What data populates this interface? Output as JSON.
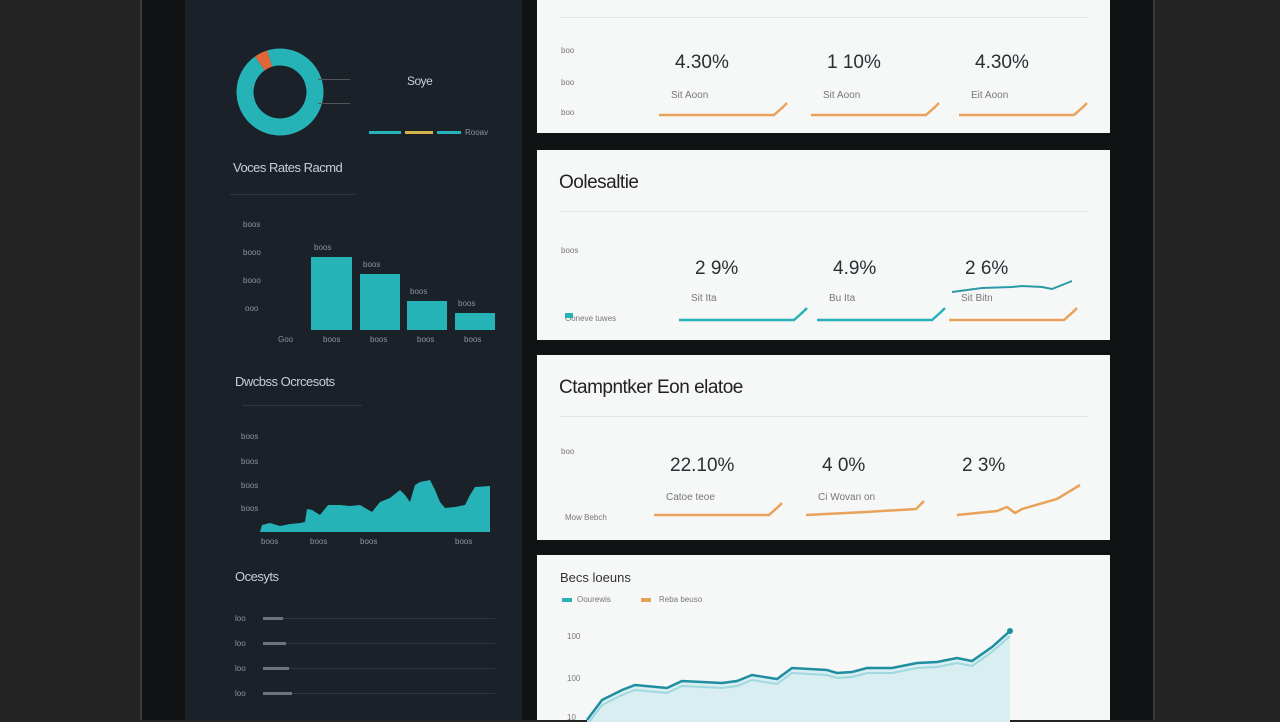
{
  "colors": {
    "teal": "#25b3b8",
    "orange": "#e9a25a",
    "panel": "#1b2129",
    "card": "#f6f7f7"
  },
  "left": {
    "donut": {
      "label": "Soye",
      "legend": "Rooav",
      "slices": [
        {
          "value": 95,
          "color": "#25b3b8"
        },
        {
          "value": 5,
          "color": "#e0673a"
        }
      ]
    },
    "bar_section": {
      "title": "Voces Rates Racmd",
      "y_ticks": [
        "boos",
        "booo",
        "booo",
        "ooo"
      ],
      "x_labels": [
        "Goo",
        "boos",
        "boos",
        "boos",
        "boos"
      ],
      "bar_labels": [
        "boos",
        "boos",
        "boos",
        "boos"
      ],
      "values": [
        1.0,
        0.77,
        0.4,
        0.23
      ]
    },
    "area_section": {
      "title": "Dwcbss Ocrcesots",
      "y_ticks": [
        "boos",
        "boos",
        "boos",
        "boos"
      ],
      "x_labels": [
        "boos",
        "boos",
        "boos",
        "boos"
      ]
    },
    "list_section": {
      "title": "Ocesyts",
      "rows": [
        "loo",
        "loo",
        "loo",
        "loo"
      ]
    }
  },
  "cards": [
    {
      "title": "",
      "side_labels": [
        "boo",
        "boo",
        "boo"
      ],
      "metrics": [
        {
          "value": "4.30%",
          "label": "Sit Aoon",
          "color": "#e9a25a"
        },
        {
          "value": "1 10%",
          "label": "Sit Aoon",
          "color": "#e9a25a"
        },
        {
          "value": "4.30%",
          "label": "Eit Aoon",
          "color": "#e9a25a"
        }
      ]
    },
    {
      "title": "Oolesaltie",
      "side_labels": [
        "boos",
        "Ooneve tuwes"
      ],
      "metrics": [
        {
          "value": "2 9%",
          "label": "Sit Ita",
          "color": "#25b3b8"
        },
        {
          "value": "4.9%",
          "label": "Bu Ita",
          "color": "#25b3b8"
        },
        {
          "value": "2 6%",
          "label": "Sit Bitn",
          "color": "#e9a25a"
        }
      ]
    },
    {
      "title": "Ctampntker Eon elatoe",
      "side_labels": [
        "boo",
        "Mow Bebch"
      ],
      "metrics": [
        {
          "value": "22.10%",
          "label": "Catoe teoe",
          "color": "#e9a25a"
        },
        {
          "value": "4 0%",
          "label": "Ci Wovan on",
          "color": "#e9a25a"
        },
        {
          "value": "2 3%",
          "label": "",
          "color": "#e9a25a"
        }
      ]
    },
    {
      "title": "Becs loeuns",
      "legend": [
        "Oourewis",
        "Reba beuso"
      ],
      "y_ticks": [
        "100",
        "100",
        "10"
      ]
    }
  ]
}
